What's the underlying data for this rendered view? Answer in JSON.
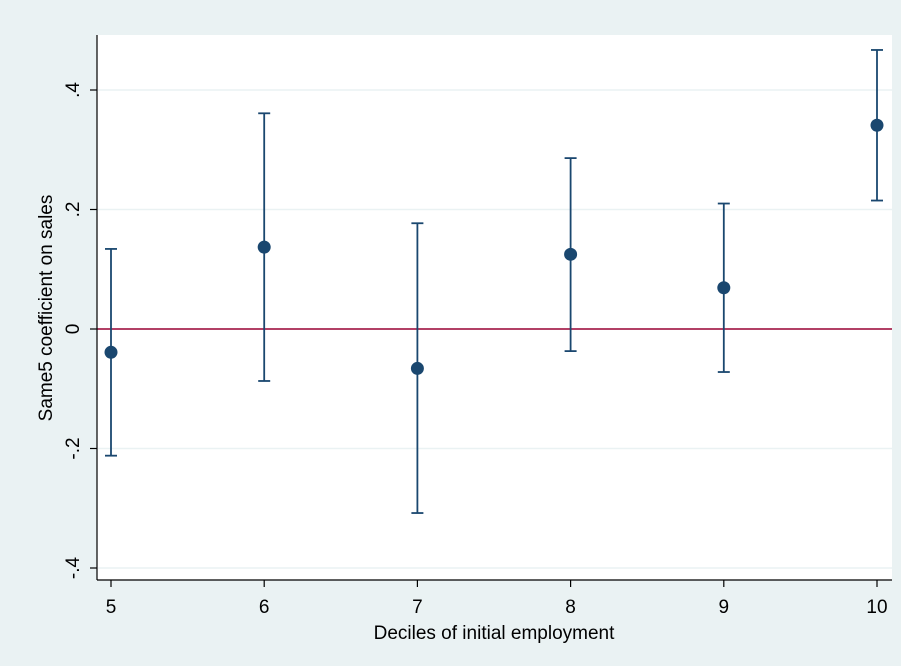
{
  "colors": {
    "outer_background": "#eaf2f3",
    "plot_background": "#ffffff",
    "grid": "#eaf2f3",
    "axis": "#000000",
    "marker": "#1a476f",
    "error_bar": "#1a476f",
    "reference_line": "#990033"
  },
  "chart_data": {
    "type": "scatter",
    "subtype": "coefficient-plot-with-confidence-intervals",
    "xlabel": "Deciles of initial employment",
    "ylabel": "Same5 coefficient on sales",
    "xlim": [
      5,
      10
    ],
    "ylim": [
      -0.42,
      0.49
    ],
    "x_ticks": [
      5,
      6,
      7,
      8,
      9,
      10
    ],
    "x_tick_labels": [
      "5",
      "6",
      "7",
      "8",
      "9",
      "10"
    ],
    "y_ticks": [
      -0.4,
      -0.2,
      0,
      0.2,
      0.4
    ],
    "y_tick_labels": [
      "-.4",
      "-.2",
      "0",
      ".2",
      ".4"
    ],
    "y_tick_labels_rotated": true,
    "grid": "horizontal",
    "reference_line_y": 0,
    "legend": "none",
    "points": [
      {
        "x": 5,
        "y": -0.039,
        "lower": -0.212,
        "upper": 0.134
      },
      {
        "x": 6,
        "y": 0.137,
        "lower": -0.087,
        "upper": 0.361
      },
      {
        "x": 7,
        "y": -0.066,
        "lower": -0.308,
        "upper": 0.177
      },
      {
        "x": 8,
        "y": 0.125,
        "lower": -0.037,
        "upper": 0.286
      },
      {
        "x": 9,
        "y": 0.069,
        "lower": -0.072,
        "upper": 0.21
      },
      {
        "x": 10,
        "y": 0.341,
        "lower": 0.215,
        "upper": 0.467
      }
    ]
  }
}
